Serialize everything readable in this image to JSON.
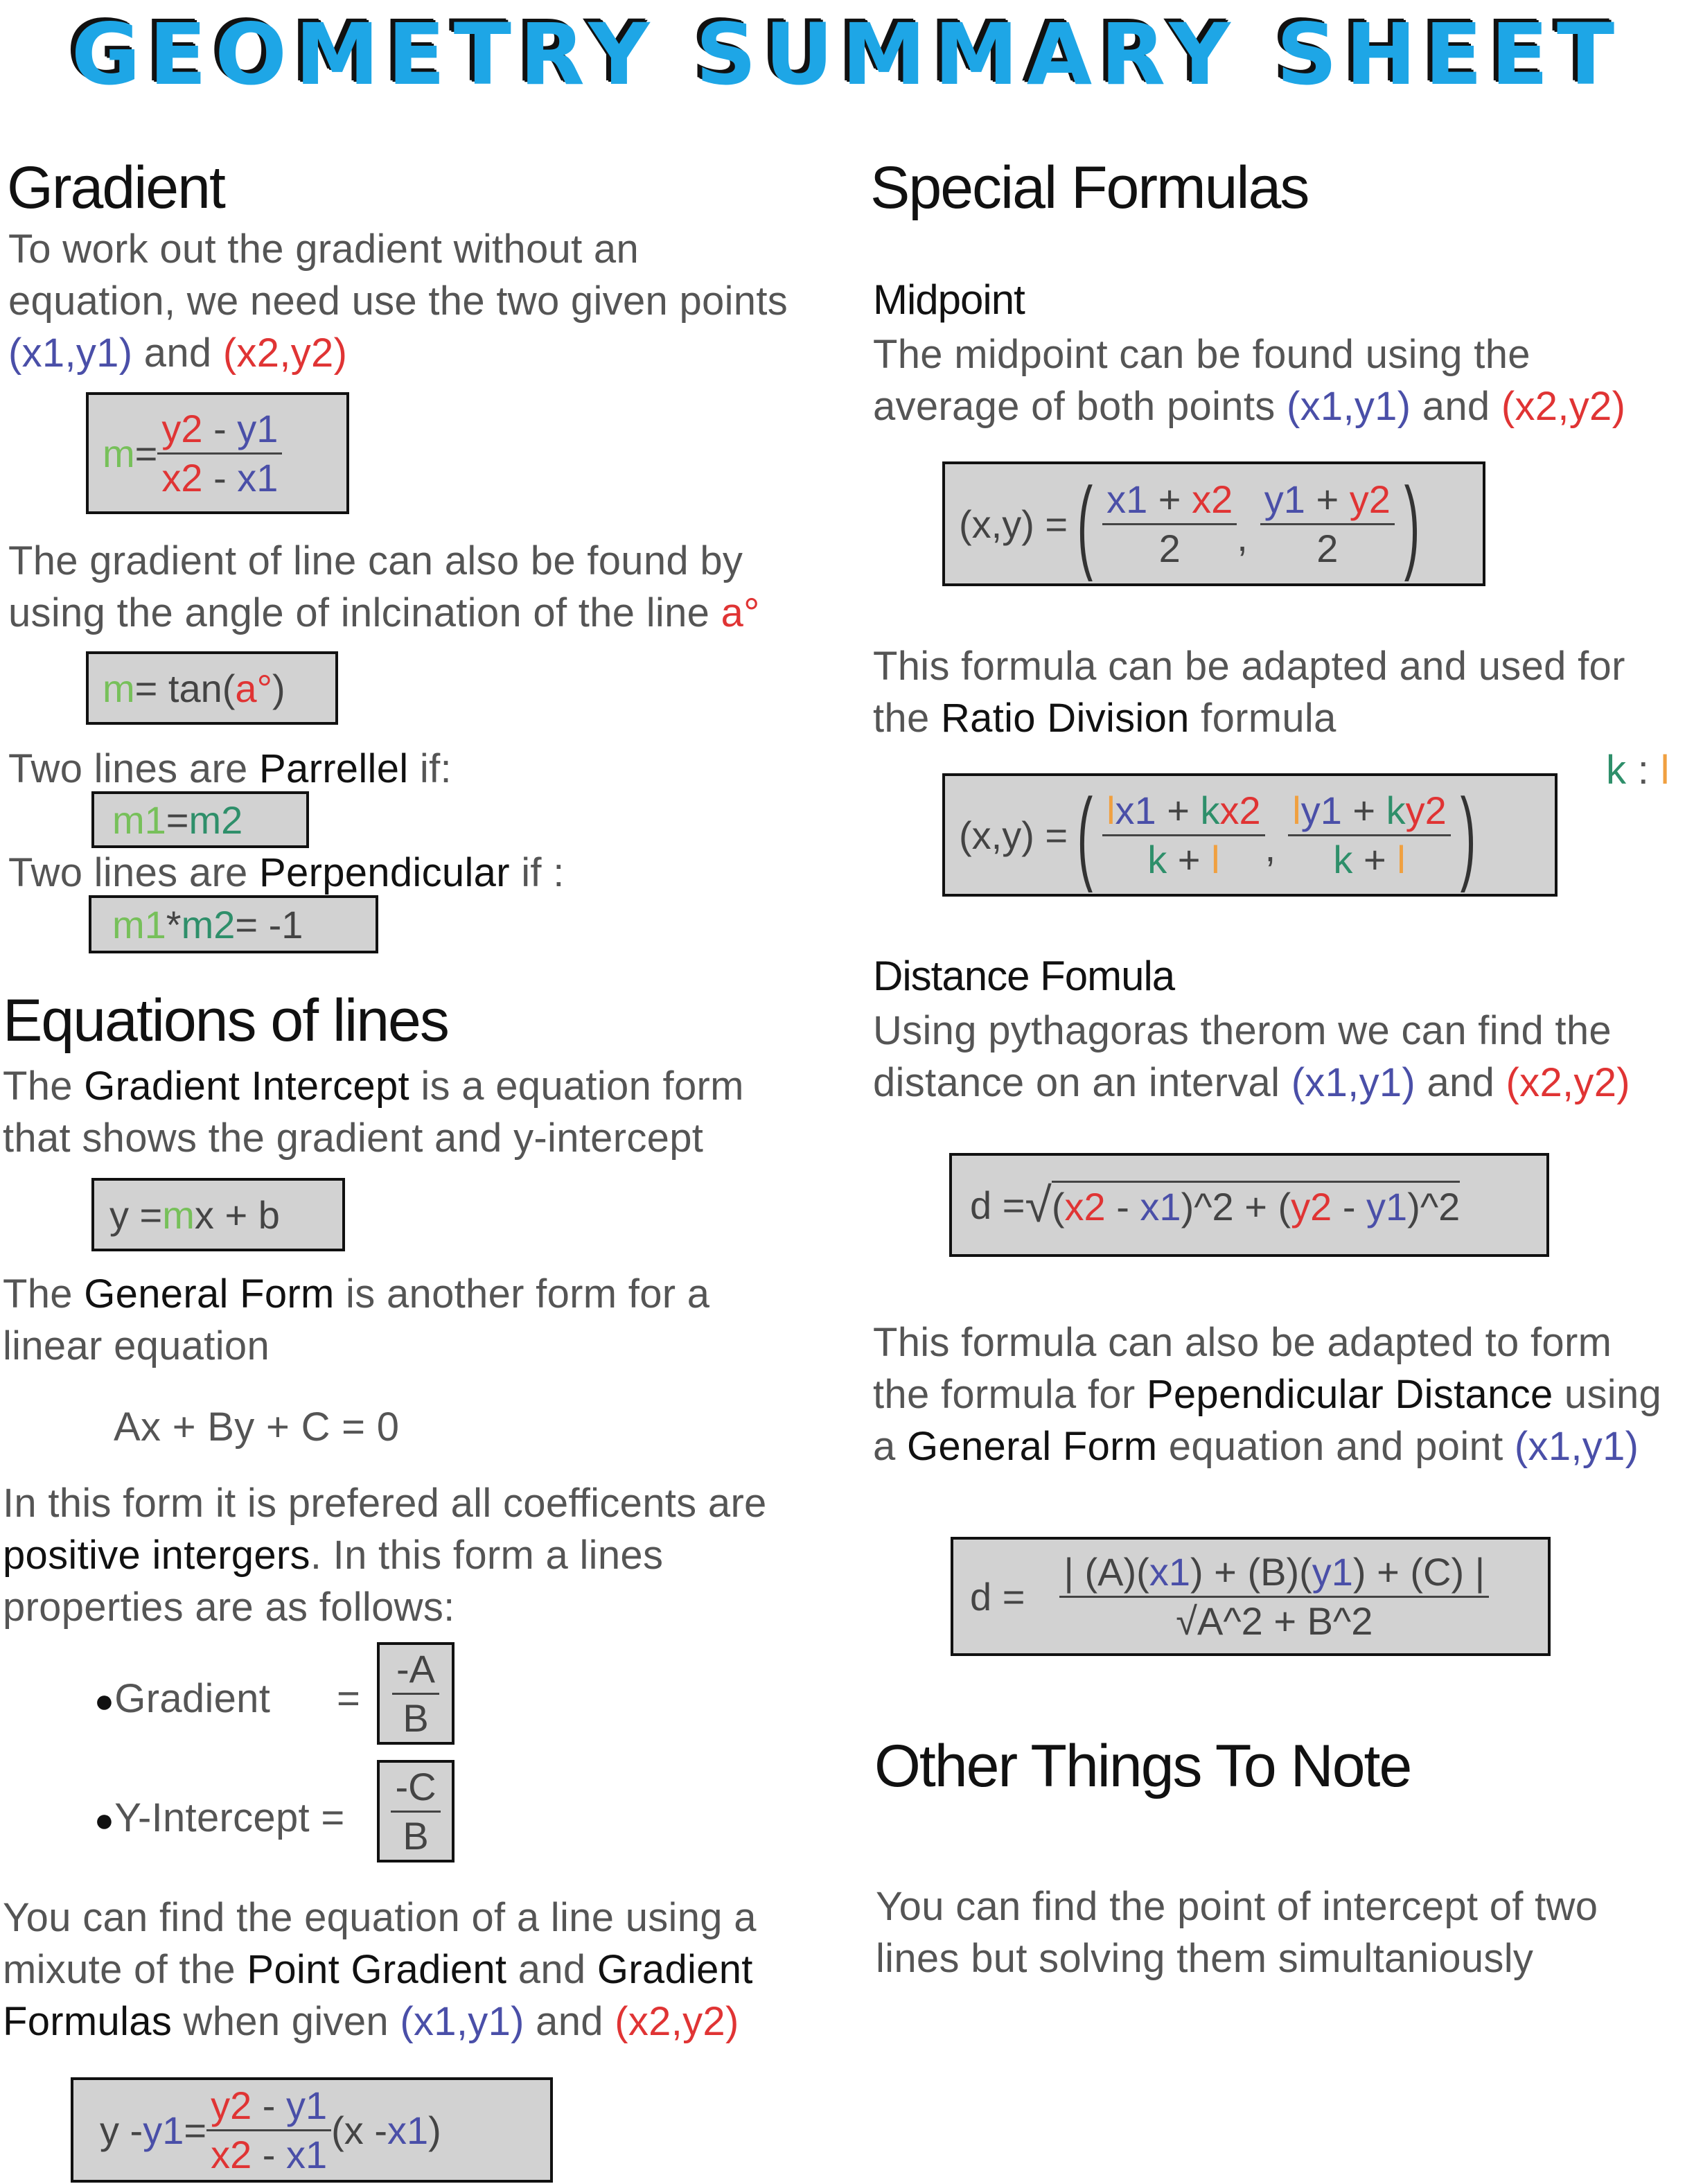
{
  "title": "GEOMETRY SUMMARY SHEET",
  "left": {
    "gradient": {
      "heading": "Gradient",
      "intro_l1": "To work out the gradient without an",
      "intro_l2": "equation, we need use the two given points",
      "p1": "(x1,y1)",
      "and": " and ",
      "p2": "(x2,y2)",
      "formula": {
        "m": "m",
        "eq": " = ",
        "num_a": "y2",
        "num_op": " - ",
        "num_b": "y1",
        "den_a": "x2",
        "den_op": " - ",
        "den_b": "x1"
      },
      "angle_l1": "The gradient of line can also be found by",
      "angle_l2": "using the angle of inlcination of the line ",
      "angle_sym": "a°",
      "tan": {
        "m": "m",
        "mid": " = tan(",
        "a": "a°",
        "end": ")"
      },
      "parallel_pre": "Two lines are ",
      "parallel_word": "Parrellel",
      "parallel_post": " if:",
      "parallel_formula": {
        "a": "m1",
        "eq": " = ",
        "b": "m2"
      },
      "perp_pre": "Two lines are ",
      "perp_word": "Perpendicular",
      "perp_post": " if :",
      "perp_formula": {
        "a": "m1",
        "op": " * ",
        "b": "m2",
        "end": " = -1"
      }
    },
    "equations": {
      "heading": "Equations of lines",
      "gi_pre": "The ",
      "gi_word": "Gradient Intercept",
      "gi_post": " is a equation form",
      "gi_l2": "that shows the gradient and y-intercept",
      "gi_formula": {
        "a": "y = ",
        "m": "m",
        "b": "x + b"
      },
      "gf_pre": "The ",
      "gf_word": "General Form",
      "gf_post": " is another form for a",
      "gf_l2": "linear equation",
      "general_eq": "Ax + By + C = 0",
      "pref_l1": "In this form it is prefered all coefficents are",
      "pref_word": "positive intergers",
      "pref_post": ". In this form a lines",
      "pref_l3": "properties are as follows:",
      "bullet_grad": "Gradient",
      "bullet_grad_eq": "=",
      "grad_num": "-A",
      "grad_den": "B",
      "bullet_yint": "Y-Intercept =",
      "yint_num": "-C",
      "yint_den": "B",
      "pg_l1": "You can find the equation of a line using a",
      "pg_l2_pre": "mixute of the ",
      "pg_word1": "Point Gradient",
      "pg_l2_mid": " and ",
      "pg_word2": "Gradient",
      "pg_word3": "Formulas",
      "pg_l3_mid": " when given ",
      "p1": "(x1,y1)",
      "and": " and ",
      "p2": "(x2,y2)",
      "pg_formula": {
        "lhs_a": "y - ",
        "lhs_b": "y1",
        "eq": " = ",
        "num_a": "y2",
        "num_op": " - ",
        "num_b": "y1",
        "den_a": "x2",
        "den_op": " - ",
        "den_b": "x1",
        "rhs_a": " (x - ",
        "rhs_b": "x1",
        "rhs_c": ")"
      }
    }
  },
  "right": {
    "heading": "Special Formulas",
    "midpoint": {
      "heading": "Midpoint",
      "l1": "The midpoint can be found using the",
      "l2": "average of both points ",
      "p1": "(x1,y1)",
      "and": " and ",
      "p2": "(x2,y2)",
      "formula": {
        "lhs": "(x,y) =",
        "n1a": "x1",
        "n1op": " + ",
        "n1b": "x2",
        "d1": "2",
        "comma": ",",
        "n2a": "y1",
        "n2op": " + ",
        "n2b": "y2",
        "d2": "2"
      },
      "ratio_l1": "This formula can be adapted and used for",
      "ratio_pre": "the ",
      "ratio_word": "Ratio Division",
      "ratio_post": " formula",
      "kl": {
        "k": "k",
        "colon": " : ",
        "l": "l"
      },
      "ratio_formula": {
        "lhs": "(x,y) =",
        "n1a": "l",
        "n1b": "x1",
        "n1op": " + ",
        "n1c": "k",
        "n1d": "x2",
        "d1a": "k",
        "d1op": " + ",
        "d1b": "l",
        "comma": ",",
        "n2a": "l",
        "n2b": "y1",
        "n2op": " + ",
        "n2c": "k",
        "n2d": "y2",
        "d2a": "k",
        "d2op": " + ",
        "d2b": "l"
      }
    },
    "distance": {
      "heading": "Distance Fomula",
      "l1": "Using pythagoras therom we can find the",
      "l2": "distance on an interval ",
      "p1": "(x1,y1)",
      "and": " and ",
      "p2": "(x2,y2)",
      "formula": {
        "lhs": "d = ",
        "o1": "(",
        "a": "x2",
        "op1": " - ",
        "b": "x1",
        "c1": ")^2 + (",
        "c": "y2",
        "op2": " - ",
        "d": "y1",
        "c2": ")^2"
      },
      "perp_l1": "This formula can also be adapted to form",
      "perp_pre": "the formula for ",
      "perp_word": "Pependicular Distance",
      "perp_post": " using",
      "perp_l3_pre": "a ",
      "perp_l3_word": "General Form",
      "perp_l3_mid": " equation and point ",
      "p3": "(x1,y1)",
      "perp_formula": {
        "lhs": "d = ",
        "n1": "|  (A)(",
        "x": "x1",
        "n2": ") + (B)(",
        "y": "y1",
        "n3": ") + (C) |",
        "den": "√A^2 + B^2"
      }
    },
    "other": {
      "heading": "Other Things To Note",
      "l1": "You can find the point of intercept of two",
      "l2": "lines but solving them simultaniously"
    }
  }
}
